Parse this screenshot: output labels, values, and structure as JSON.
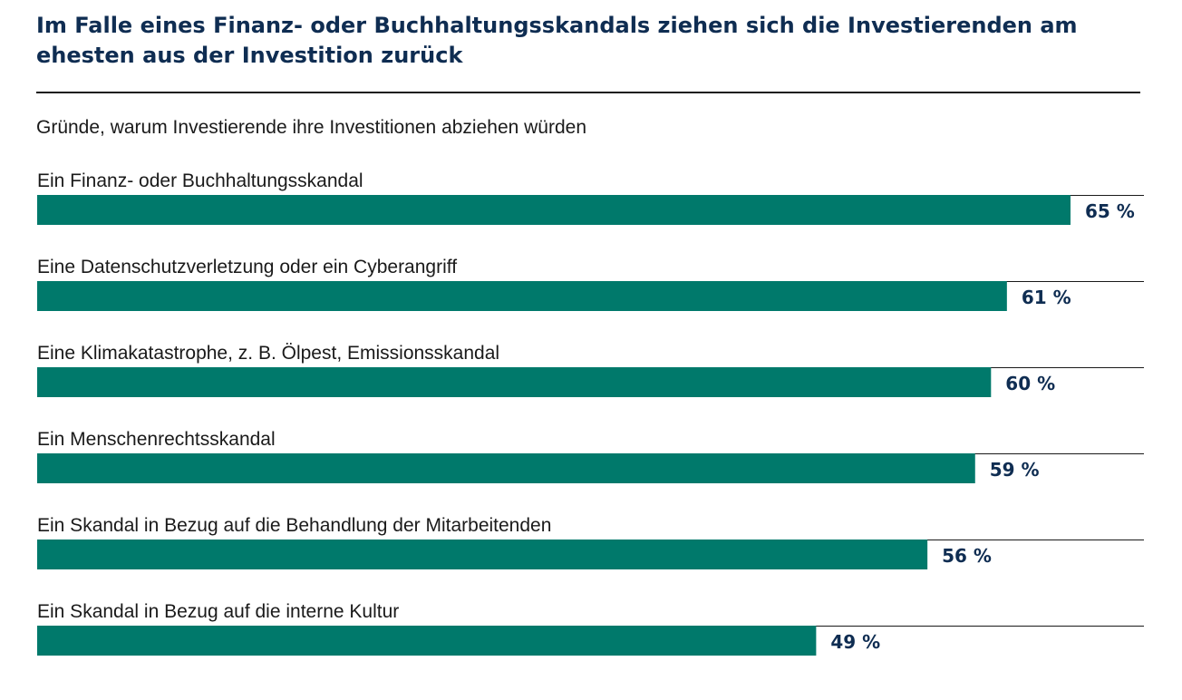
{
  "colors": {
    "bar": "#00796b",
    "title": "#0f2d52",
    "value_label": "#0f2d52",
    "rule": "#1a1a1a"
  },
  "chart_data": {
    "type": "bar",
    "orientation": "horizontal",
    "title": "Im Falle eines Finanz- oder Buchhaltungsskandals ziehen sich die Investierenden am ehesten aus der Investition zurück",
    "subtitle": "Gründe, warum Investierende ihre Investitionen abziehen würden",
    "categories": [
      "Ein Finanz- oder Buchhaltungsskandal",
      "Eine Datenschutzverletzung oder ein Cyberangriff",
      "Eine Klimakatastrophe, z. B. Ölpest, Emissionsskandal",
      "Ein Menschenrechtsskandal",
      "Ein Skandal in Bezug auf die Behandlung der Mitarbeitenden",
      "Ein Skandal in Bezug auf die interne Kultur"
    ],
    "values": [
      65,
      61,
      60,
      59,
      56,
      49
    ],
    "value_labels": [
      "65 %",
      "61 %",
      "60 %",
      "59 %",
      "56 %",
      "49 %"
    ],
    "unit": "%",
    "xlim": [
      0,
      100
    ],
    "grid": false,
    "legend": "none"
  }
}
